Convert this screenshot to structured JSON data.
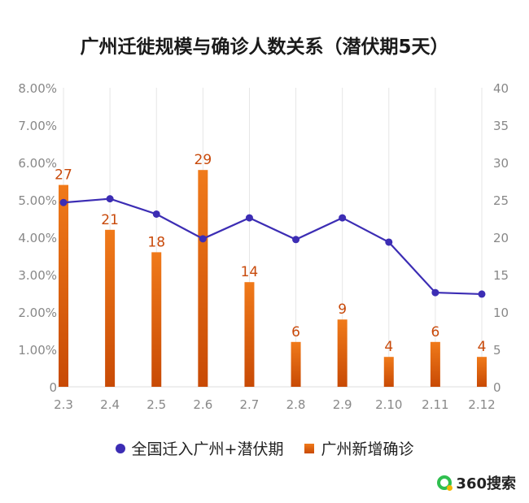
{
  "title": "广州迁徙规模与确诊人数关系（潜伏期5天）",
  "brand": {
    "name": "360搜索",
    "icon": "360-logo-icon"
  },
  "colors": {
    "line": "#3c2db4",
    "bar_top": "#f07a1a",
    "bar_bottom": "#c84a05",
    "label": "#c8490a",
    "grid": "#e6e6e6",
    "axis_text": "#888888"
  },
  "chart_data": {
    "type": "bar",
    "categories": [
      "2.3",
      "2.4",
      "2.5",
      "2.6",
      "2.7",
      "2.8",
      "2.9",
      "2.10",
      "2.11",
      "2.12"
    ],
    "series": [
      {
        "name": "全国迁入广州+潜伏期",
        "type": "line",
        "axis": "left",
        "values": [
          4.93,
          5.03,
          4.62,
          3.96,
          4.52,
          3.94,
          4.52,
          3.87,
          2.52,
          2.48
        ]
      },
      {
        "name": "广州新增确诊",
        "type": "bar",
        "axis": "right",
        "values": [
          27,
          21,
          18,
          29,
          14,
          6,
          9,
          4,
          6,
          4
        ]
      }
    ],
    "y_left": {
      "ticks": [
        "0",
        "1.00%",
        "2.00%",
        "3.00%",
        "4.00%",
        "5.00%",
        "6.00%",
        "7.00%",
        "8.00%"
      ],
      "ylim": [
        0,
        8
      ]
    },
    "y_right": {
      "ticks": [
        "0",
        "5",
        "10",
        "15",
        "20",
        "25",
        "30",
        "35",
        "40"
      ],
      "ylim": [
        0,
        40
      ]
    },
    "grid": "vertical",
    "legend": "bottom"
  }
}
